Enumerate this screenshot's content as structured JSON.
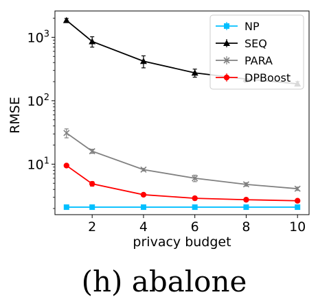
{
  "caption": "(h) abalone",
  "chart_data": {
    "type": "line",
    "xlabel": "privacy budget",
    "ylabel": "RMSE",
    "yscale": "log",
    "xlim": [
      0.55,
      10.45
    ],
    "ylim": [
      1.6,
      2600
    ],
    "x_ticks": [
      2,
      4,
      6,
      8,
      10
    ],
    "y_ticks": [
      {
        "value": 10,
        "label": "10",
        "exp": "1"
      },
      {
        "value": 100,
        "label": "10",
        "exp": "2"
      },
      {
        "value": 1000,
        "label": "10",
        "exp": "3"
      }
    ],
    "legend_position": "top-right",
    "x": [
      1,
      2,
      4,
      6,
      8,
      10
    ],
    "series": [
      {
        "name": "NP",
        "color": "#00bfff",
        "marker": "square",
        "values": [
          2.1,
          2.1,
          2.1,
          2.1,
          2.1,
          2.1
        ],
        "err": [
          0.03,
          0.03,
          0.03,
          0.03,
          0.03,
          0.03
        ]
      },
      {
        "name": "SEQ",
        "color": "#000000",
        "marker": "triangle",
        "values": [
          1850,
          860,
          420,
          275,
          220,
          185
        ],
        "err": [
          130,
          160,
          90,
          40,
          25,
          15
        ]
      },
      {
        "name": "PARA",
        "color": "#808080",
        "marker": "x",
        "values": [
          31,
          16,
          8.2,
          6.0,
          4.8,
          4.1
        ],
        "err": [
          5,
          1.2,
          0.4,
          0.7,
          0.3,
          0.25
        ]
      },
      {
        "name": "DPBoost",
        "color": "#ff0000",
        "marker": "circle",
        "values": [
          9.5,
          4.9,
          3.3,
          2.9,
          2.75,
          2.65
        ],
        "err": [
          0.5,
          0.4,
          0.1,
          0.08,
          0.07,
          0.06
        ]
      }
    ]
  }
}
